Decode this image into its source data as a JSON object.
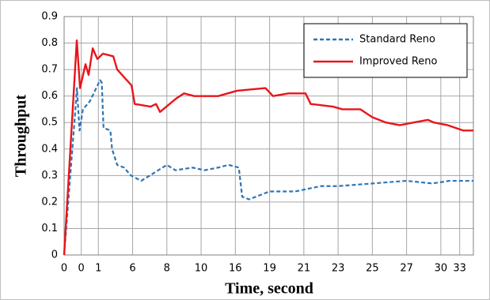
{
  "chart_data": {
    "type": "line",
    "xlabel": "Time, second",
    "ylabel": "Throughput",
    "xlim": [
      0,
      23.9
    ],
    "ylim": [
      0,
      0.9
    ],
    "xticks": [
      {
        "value": 0,
        "label": "0"
      },
      {
        "value": 1,
        "label": "0"
      },
      {
        "value": 2,
        "label": "1"
      },
      {
        "value": 4,
        "label": "6"
      },
      {
        "value": 6,
        "label": "8"
      },
      {
        "value": 8,
        "label": "10"
      },
      {
        "value": 10,
        "label": "16"
      },
      {
        "value": 12,
        "label": "19"
      },
      {
        "value": 14,
        "label": "21"
      },
      {
        "value": 16,
        "label": "23"
      },
      {
        "value": 18,
        "label": "25"
      },
      {
        "value": 20,
        "label": "27"
      },
      {
        "value": 22,
        "label": "30"
      },
      {
        "value": 23.1,
        "label": "33"
      }
    ],
    "yticks": [
      0,
      0.1,
      0.2,
      0.3,
      0.4,
      0.5,
      0.6,
      0.7,
      0.8,
      0.9
    ],
    "grid": true,
    "legend": "upper right",
    "series": [
      {
        "name": "Standard Reno",
        "color": "#2e75b6",
        "dash": true,
        "x": [
          0,
          0.6,
          0.75,
          0.9,
          1.1,
          1.5,
          1.8,
          2.1,
          2.2,
          2.3,
          2.7,
          2.8,
          3.1,
          3.5,
          3.9,
          4.5,
          5,
          5.5,
          6,
          6.5,
          7.5,
          8.2,
          9,
          9.6,
          10.2,
          10.4,
          10.8,
          12,
          13.5,
          15,
          16,
          18,
          20,
          21.5,
          22.5,
          23.9
        ],
        "values": [
          0,
          0.5,
          0.63,
          0.47,
          0.55,
          0.58,
          0.62,
          0.66,
          0.65,
          0.48,
          0.47,
          0.4,
          0.34,
          0.33,
          0.3,
          0.28,
          0.3,
          0.32,
          0.34,
          0.32,
          0.33,
          0.32,
          0.33,
          0.34,
          0.33,
          0.22,
          0.21,
          0.24,
          0.24,
          0.26,
          0.26,
          0.27,
          0.28,
          0.27,
          0.28,
          0.28
        ]
      },
      {
        "name": "Improved Reno",
        "color": "#e8151b",
        "dash": false,
        "x": [
          0,
          0.74,
          0.93,
          1.25,
          1.43,
          1.67,
          1.94,
          2.27,
          2.87,
          3.1,
          3.66,
          3.94,
          4.12,
          5.05,
          5.37,
          5.6,
          6.53,
          7,
          7.6,
          9,
          10.1,
          11.76,
          12.2,
          13.1,
          14.1,
          14.4,
          15.7,
          16.25,
          17.3,
          18,
          18.8,
          19.6,
          20.4,
          21.25,
          21.6,
          22.4,
          23.3,
          23.9
        ],
        "values": [
          0,
          0.81,
          0.63,
          0.72,
          0.68,
          0.78,
          0.74,
          0.76,
          0.75,
          0.7,
          0.66,
          0.64,
          0.57,
          0.56,
          0.57,
          0.54,
          0.59,
          0.61,
          0.6,
          0.6,
          0.62,
          0.63,
          0.6,
          0.61,
          0.61,
          0.57,
          0.56,
          0.55,
          0.55,
          0.52,
          0.5,
          0.49,
          0.5,
          0.51,
          0.5,
          0.49,
          0.47,
          0.47
        ]
      }
    ]
  }
}
